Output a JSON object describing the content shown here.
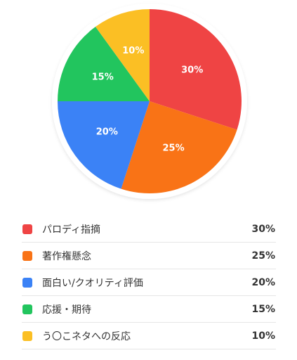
{
  "chart_data": {
    "type": "pie",
    "slices": [
      {
        "label": "パロディ指摘",
        "value": 30,
        "display": "30%",
        "color": "#ef4444"
      },
      {
        "label": "著作権懸念",
        "value": 25,
        "display": "25%",
        "color": "#f97316"
      },
      {
        "label": "面白い/クオリティ評価",
        "value": 20,
        "display": "20%",
        "color": "#3b82f6"
      },
      {
        "label": "応援・期待",
        "value": 15,
        "display": "15%",
        "color": "#22c55e"
      },
      {
        "label": "う〇こネタへの反応",
        "value": 10,
        "display": "10%",
        "color": "#fbbf24"
      }
    ],
    "legend_position": "bottom"
  }
}
